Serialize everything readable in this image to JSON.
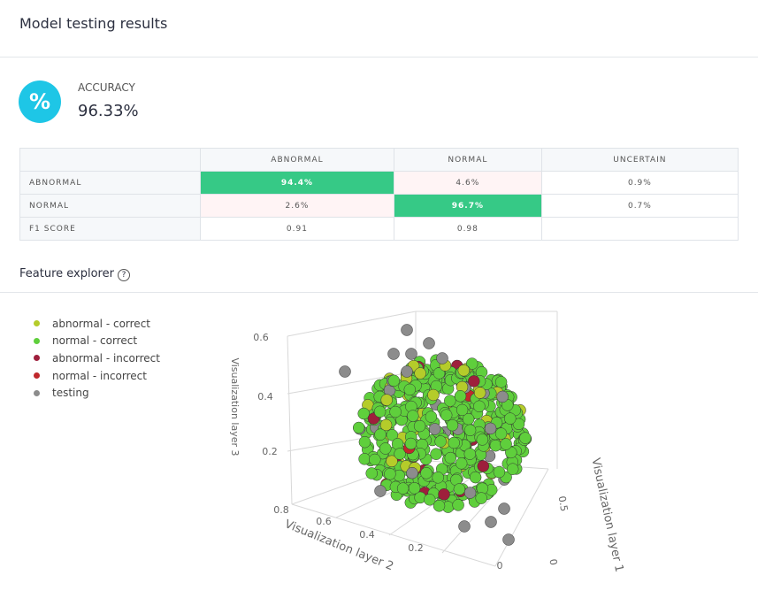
{
  "header": {
    "title": "Model testing results"
  },
  "accuracy": {
    "label": "ACCURACY",
    "value": "96.33%"
  },
  "table": {
    "columns": [
      "ABNORMAL",
      "NORMAL",
      "UNCERTAIN"
    ],
    "rows": [
      {
        "label": "ABNORMAL",
        "cells": [
          "94.4%",
          "4.6%",
          "0.9%"
        ]
      },
      {
        "label": "NORMAL",
        "cells": [
          "2.6%",
          "96.7%",
          "0.7%"
        ]
      },
      {
        "label": "F1 SCORE",
        "cells": [
          "0.91",
          "0.98"
        ]
      }
    ]
  },
  "feature_explorer": {
    "title": "Feature explorer",
    "legend": [
      {
        "name": "abnormal - correct",
        "color": "#b5cc2a"
      },
      {
        "name": "normal - correct",
        "color": "#5fcf3c"
      },
      {
        "name": "abnormal - incorrect",
        "color": "#9e1f3c"
      },
      {
        "name": "normal - incorrect",
        "color": "#c0282c"
      },
      {
        "name": "testing",
        "color": "#8c8c8c"
      }
    ],
    "plot": {
      "z_label": "Visualization layer 3",
      "z_ticks": [
        "0.6",
        "0.4",
        "0.2"
      ],
      "x_label": "Visualization layer 2",
      "x_ticks": [
        "0.8",
        "0.6",
        "0.4",
        "0.2",
        "0"
      ],
      "y_label": "Visualization layer 1",
      "y_ticks": [
        "0.5",
        "0"
      ]
    }
  }
}
